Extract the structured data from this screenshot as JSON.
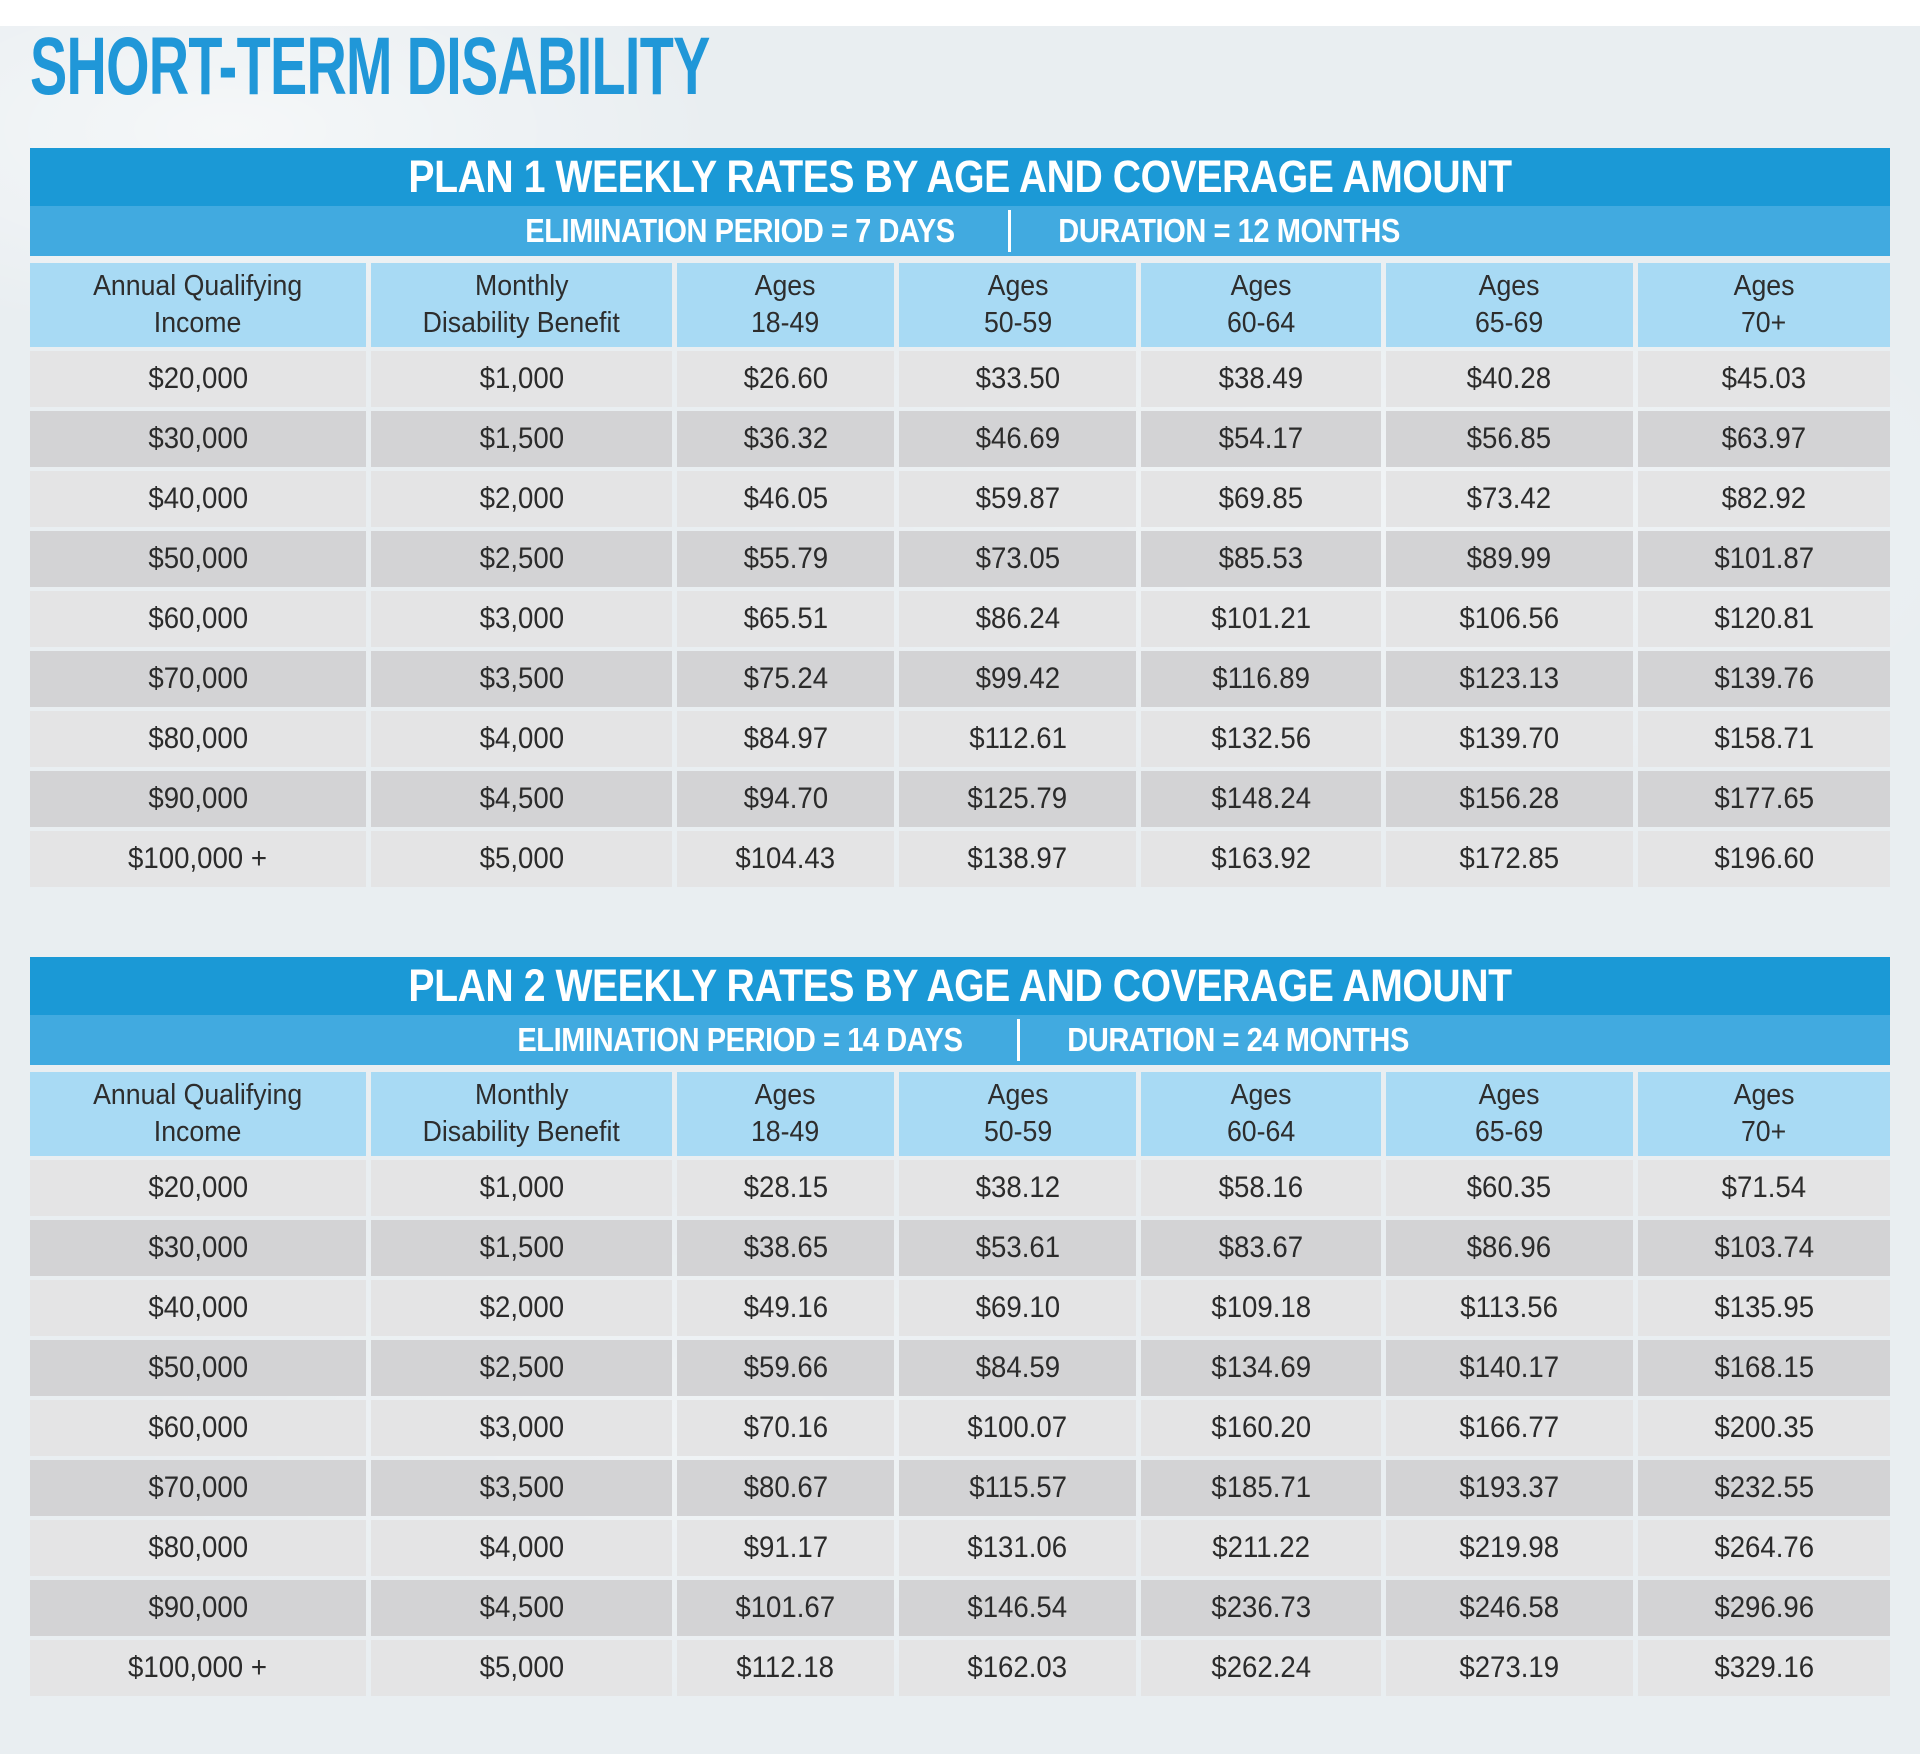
{
  "page": {
    "title": "SHORT-TERM DISABILITY"
  },
  "columns": [
    {
      "line1": "Annual Qualifying",
      "line2": "Income"
    },
    {
      "line1": "Monthly",
      "line2": "Disability Benefit"
    },
    {
      "line1": "Ages",
      "line2": "18-49"
    },
    {
      "line1": "Ages",
      "line2": "50-59"
    },
    {
      "line1": "Ages",
      "line2": "60-64"
    },
    {
      "line1": "Ages",
      "line2": "65-69"
    },
    {
      "line1": "Ages",
      "line2": "70+"
    }
  ],
  "tables": [
    {
      "title": "PLAN 1 WEEKLY RATES BY AGE AND COVERAGE AMOUNT",
      "subtitle_left": "ELIMINATION PERIOD = 7 DAYS",
      "subtitle_right": "DURATION = 12 MONTHS",
      "rows": [
        [
          "$20,000",
          "$1,000",
          "$26.60",
          "$33.50",
          "$38.49",
          "$40.28",
          "$45.03"
        ],
        [
          "$30,000",
          "$1,500",
          "$36.32",
          "$46.69",
          "$54.17",
          "$56.85",
          "$63.97"
        ],
        [
          "$40,000",
          "$2,000",
          "$46.05",
          "$59.87",
          "$69.85",
          "$73.42",
          "$82.92"
        ],
        [
          "$50,000",
          "$2,500",
          "$55.79",
          "$73.05",
          "$85.53",
          "$89.99",
          "$101.87"
        ],
        [
          "$60,000",
          "$3,000",
          "$65.51",
          "$86.24",
          "$101.21",
          "$106.56",
          "$120.81"
        ],
        [
          "$70,000",
          "$3,500",
          "$75.24",
          "$99.42",
          "$116.89",
          "$123.13",
          "$139.76"
        ],
        [
          "$80,000",
          "$4,000",
          "$84.97",
          "$112.61",
          "$132.56",
          "$139.70",
          "$158.71"
        ],
        [
          "$90,000",
          "$4,500",
          "$94.70",
          "$125.79",
          "$148.24",
          "$156.28",
          "$177.65"
        ],
        [
          "$100,000 +",
          "$5,000",
          "$104.43",
          "$138.97",
          "$163.92",
          "$172.85",
          "$196.60"
        ]
      ]
    },
    {
      "title": "PLAN 2 WEEKLY RATES BY AGE AND COVERAGE AMOUNT",
      "subtitle_left": "ELIMINATION PERIOD = 14 DAYS",
      "subtitle_right": "DURATION = 24 MONTHS",
      "rows": [
        [
          "$20,000",
          "$1,000",
          "$28.15",
          "$38.12",
          "$58.16",
          "$60.35",
          "$71.54"
        ],
        [
          "$30,000",
          "$1,500",
          "$38.65",
          "$53.61",
          "$83.67",
          "$86.96",
          "$103.74"
        ],
        [
          "$40,000",
          "$2,000",
          "$49.16",
          "$69.10",
          "$109.18",
          "$113.56",
          "$135.95"
        ],
        [
          "$50,000",
          "$2,500",
          "$59.66",
          "$84.59",
          "$134.69",
          "$140.17",
          "$168.15"
        ],
        [
          "$60,000",
          "$3,000",
          "$70.16",
          "$100.07",
          "$160.20",
          "$166.77",
          "$200.35"
        ],
        [
          "$70,000",
          "$3,500",
          "$80.67",
          "$115.57",
          "$185.71",
          "$193.37",
          "$232.55"
        ],
        [
          "$80,000",
          "$4,000",
          "$91.17",
          "$131.06",
          "$211.22",
          "$219.98",
          "$264.76"
        ],
        [
          "$90,000",
          "$4,500",
          "$101.67",
          "$146.54",
          "$236.73",
          "$246.58",
          "$296.96"
        ],
        [
          "$100,000 +",
          "$5,000",
          "$112.18",
          "$162.03",
          "$262.24",
          "$273.19",
          "$329.16"
        ]
      ]
    }
  ],
  "colors": {
    "title_blue": "#2097d8",
    "bar_blue": "#1b99d6",
    "subtitle_blue": "#41aae0",
    "header_blue": "#a8daf4",
    "row_light": "#e4e4e5",
    "row_dark": "#d3d3d5",
    "text_dark": "#2b2b2b",
    "page_bg": "#e9eef1"
  }
}
